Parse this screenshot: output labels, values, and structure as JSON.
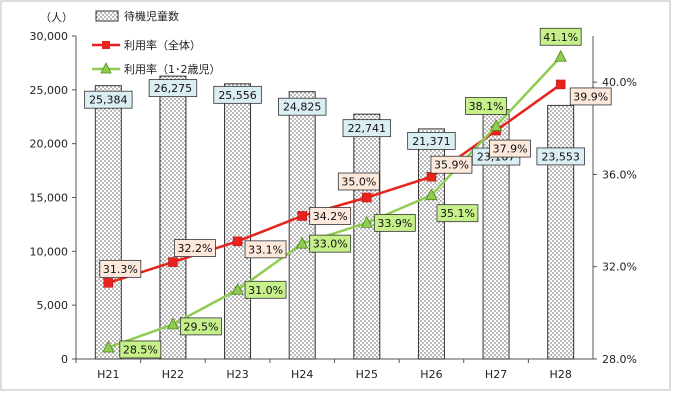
{
  "chart_data": {
    "type": "bar",
    "categories": [
      "H21",
      "H22",
      "H23",
      "H24",
      "H25",
      "H26",
      "H27",
      "H28"
    ],
    "y_left_unit": "（人）",
    "y_left_range": [
      0,
      30000
    ],
    "y_left_ticks": [
      "0",
      "5,000",
      "10,000",
      "15,000",
      "20,000",
      "25,000",
      "30,000"
    ],
    "y_right_range": [
      28.0,
      42.0
    ],
    "y_right_ticks": [
      "28.0%",
      "32.0%",
      "36.0%",
      "40.0%"
    ],
    "legend_position": "top-left",
    "grid": false,
    "series": [
      {
        "name": "待機児童数",
        "kind": "bar",
        "axis": "left",
        "values": [
          25384,
          26275,
          25556,
          24825,
          22741,
          21371,
          23167,
          23553
        ],
        "labels": [
          "25,384",
          "26,275",
          "25,556",
          "24,825",
          "22,741",
          "21,371",
          "23,167",
          "23,553"
        ],
        "label_bg": "#dbeef4"
      },
      {
        "name": "利用率（全体）",
        "kind": "line",
        "axis": "right",
        "color": "#e8221c",
        "marker": "square",
        "values": [
          31.3,
          32.2,
          33.1,
          34.2,
          35.0,
          35.9,
          37.9,
          39.9
        ],
        "labels": [
          "31.3%",
          "32.2%",
          "33.1%",
          "34.2%",
          "35.0%",
          "35.9%",
          "37.9%",
          "39.9%"
        ],
        "label_bg": "#fce9dc"
      },
      {
        "name": "利用率（1･2歳児）",
        "kind": "line",
        "axis": "right",
        "color": "#8fcc4f",
        "marker": "triangle",
        "values": [
          28.5,
          29.5,
          31.0,
          33.0,
          33.9,
          35.1,
          38.1,
          41.1
        ],
        "labels": [
          "28.5%",
          "29.5%",
          "31.0%",
          "33.0%",
          "33.9%",
          "35.1%",
          "38.1%",
          "41.1%"
        ],
        "label_bg": "#c6f08a"
      }
    ]
  }
}
